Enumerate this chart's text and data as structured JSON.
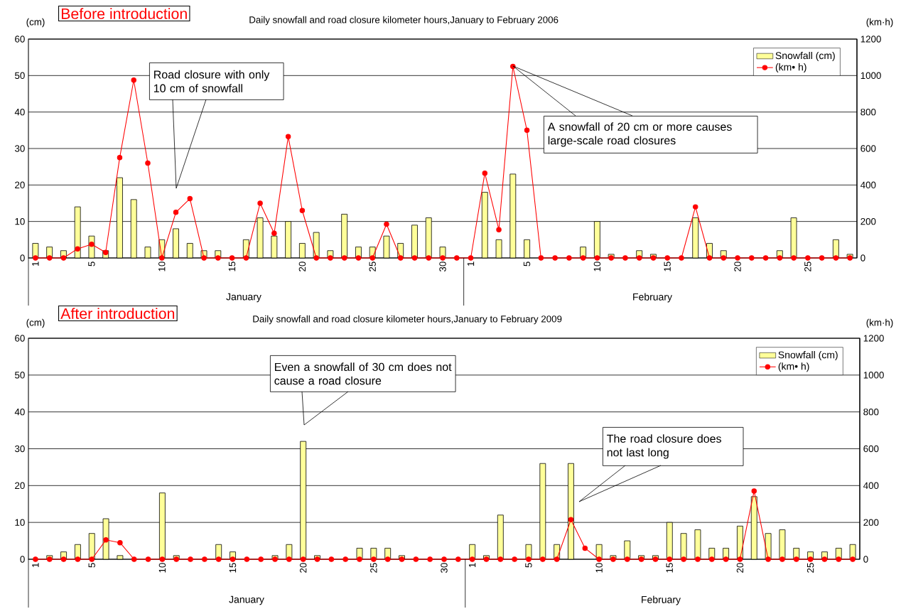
{
  "chart_data": [
    {
      "type": "bar",
      "title": "Before introduction",
      "subtitle": "Daily snowfall and road closure kilometer hours,January to February 2006",
      "ylabel": "(cm)",
      "y2label": "(km·h)",
      "categories": [
        "1",
        null,
        null,
        null,
        "5",
        null,
        null,
        null,
        null,
        "10",
        null,
        null,
        null,
        null,
        "15",
        null,
        null,
        null,
        null,
        "20",
        null,
        null,
        null,
        null,
        "25",
        null,
        null,
        null,
        null,
        "30",
        null,
        "1",
        null,
        null,
        null,
        "5",
        null,
        null,
        null,
        null,
        "10",
        null,
        null,
        null,
        null,
        "15",
        null,
        null,
        null,
        null,
        "20",
        null,
        null,
        null,
        null,
        "25",
        null,
        null,
        null
      ],
      "series": [
        {
          "name": "Snowfall (cm)",
          "color": "#ffff99",
          "values": [
            4,
            3,
            2,
            14,
            6,
            2,
            22,
            16,
            3,
            5,
            8,
            4,
            2,
            2,
            0,
            5,
            11,
            6,
            10,
            4,
            7,
            2,
            12,
            3,
            3,
            6,
            4,
            9,
            11,
            3,
            0,
            0,
            18,
            5,
            23,
            5,
            0,
            0,
            0,
            3,
            10,
            1,
            0,
            2,
            1,
            0,
            0,
            11,
            4,
            2,
            0,
            0,
            0,
            2,
            11,
            0,
            0,
            5,
            1
          ]
        },
        {
          "name": "(km• h)",
          "type": "line",
          "color": "#ff0000",
          "axis": "y2",
          "marker": "circle",
          "values": [
            0,
            0,
            0,
            50,
            75,
            30,
            550,
            975,
            520,
            0,
            250,
            325,
            0,
            0,
            0,
            0,
            300,
            135,
            665,
            260,
            0,
            0,
            0,
            0,
            0,
            185,
            0,
            0,
            0,
            0,
            0,
            0,
            465,
            155,
            1050,
            700,
            0,
            0,
            0,
            0,
            0,
            0,
            0,
            0,
            0,
            0,
            0,
            280,
            0,
            0,
            0,
            0,
            0,
            0,
            0,
            0,
            0,
            0,
            0
          ]
        }
      ],
      "ylim": [
        0,
        60
      ],
      "yticks": [
        0,
        10,
        20,
        30,
        40,
        50,
        60
      ],
      "y2lim": [
        0,
        1200
      ],
      "y2ticks": [
        0,
        200,
        400,
        600,
        800,
        1000,
        1200
      ],
      "grid": "y",
      "legend": "top right",
      "annotations": [
        "January",
        "February",
        "Road closure with only 10 cm of snowfall",
        "A snowfall of 20 cm or more causes large-scale road closures"
      ]
    },
    {
      "type": "bar",
      "title": "After introduction",
      "subtitle": "Daily snowfall and road closure kilometer hours,January to February 2009",
      "ylabel": "(cm)",
      "y2label": "(km·h)",
      "categories": [
        "1",
        null,
        null,
        null,
        "5",
        null,
        null,
        null,
        null,
        "10",
        null,
        null,
        null,
        null,
        "15",
        null,
        null,
        null,
        null,
        "20",
        null,
        null,
        null,
        null,
        "25",
        null,
        null,
        null,
        null,
        "30",
        null,
        "1",
        null,
        null,
        null,
        "5",
        null,
        null,
        null,
        null,
        "10",
        null,
        null,
        null,
        null,
        "15",
        null,
        null,
        null,
        null,
        "20",
        null,
        null,
        null,
        null,
        "25",
        null,
        null,
        null
      ],
      "series": [
        {
          "name": "Snowfall (cm)",
          "color": "#ffff99",
          "values": [
            0,
            1,
            2,
            4,
            7,
            11,
            1,
            0,
            0,
            18,
            1,
            0,
            0,
            4,
            2,
            0,
            0,
            1,
            4,
            32,
            1,
            0,
            0,
            3,
            3,
            3,
            1,
            0,
            0,
            0,
            0,
            4,
            1,
            12,
            0,
            4,
            26,
            4,
            26,
            0,
            4,
            1,
            5,
            1,
            1,
            10,
            7,
            8,
            3,
            3,
            9,
            17,
            7,
            8,
            3,
            2,
            2,
            3,
            4
          ]
        },
        {
          "name": "(km• h)",
          "type": "line",
          "color": "#ff0000",
          "axis": "y2",
          "marker": "circle",
          "values": [
            0,
            0,
            0,
            0,
            0,
            105,
            90,
            0,
            0,
            0,
            0,
            0,
            0,
            0,
            0,
            0,
            0,
            0,
            0,
            0,
            0,
            0,
            0,
            0,
            0,
            0,
            0,
            0,
            0,
            0,
            0,
            0,
            0,
            0,
            0,
            0,
            0,
            0,
            215,
            60,
            0,
            0,
            0,
            0,
            0,
            0,
            0,
            0,
            0,
            0,
            0,
            370,
            0,
            0,
            0,
            0,
            0,
            0,
            0
          ]
        }
      ],
      "ylim": [
        0,
        60
      ],
      "yticks": [
        0,
        10,
        20,
        30,
        40,
        50,
        60
      ],
      "y2lim": [
        0,
        1200
      ],
      "y2ticks": [
        0,
        200,
        400,
        600,
        800,
        1000,
        1200
      ],
      "grid": "y",
      "legend": "top right",
      "annotations": [
        "January",
        "February",
        "Even a snowfall of 30 cm does not cause a road closure",
        "The road closure does not last long"
      ]
    }
  ]
}
